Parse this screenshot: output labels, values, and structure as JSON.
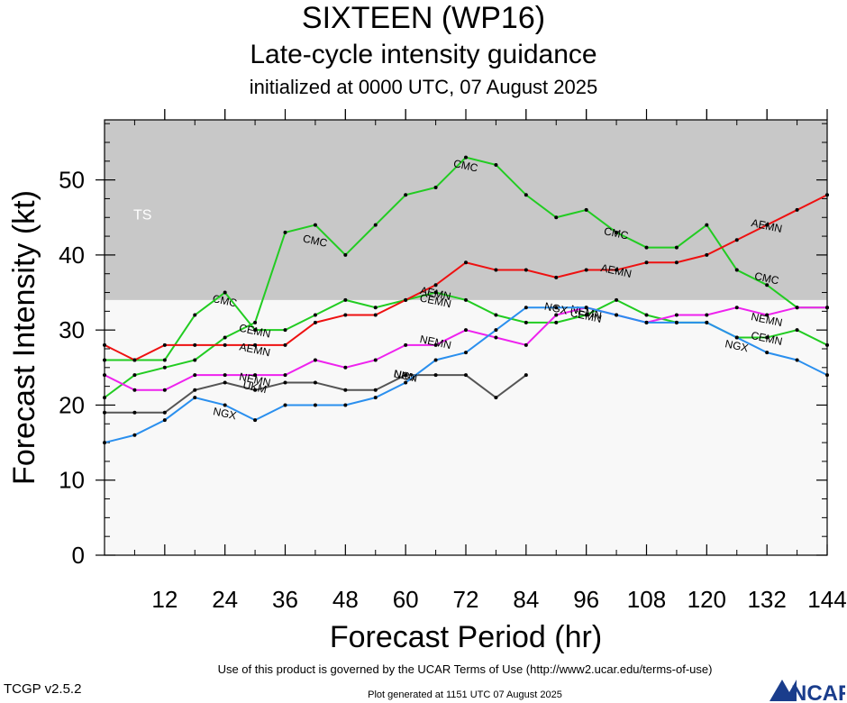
{
  "header": {
    "title": "SIXTEEN (WP16)",
    "subtitle": "Late-cycle intensity guidance",
    "subtitle2": "initialized at 0000 UTC, 07 August 2025"
  },
  "footer": {
    "terms": "Use of this product is governed by the UCAR Terms of Use (http://www2.ucar.edu/terms-of-use)",
    "version": "TCGP v2.5.2",
    "generated": "Plot generated at 1151 UTC   07 August 2025",
    "logo_text": "NCAR"
  },
  "chart_data": {
    "type": "line",
    "xlabel": "Forecast Period (hr)",
    "ylabel": "Forecast Intensity (kt)",
    "xlim": [
      0,
      144
    ],
    "ylim": [
      0,
      58
    ],
    "xticks": [
      12,
      24,
      36,
      48,
      60,
      72,
      84,
      96,
      108,
      120,
      132,
      144
    ],
    "yticks": [
      0,
      10,
      20,
      30,
      40,
      50
    ],
    "shaded_region": {
      "label": "TS",
      "y_from": 34,
      "y_to": 58,
      "color": "#c8c8c8"
    },
    "below_color": "#f8f8f8",
    "series": [
      {
        "name": "CMC",
        "color": "#22cc22",
        "x": [
          0,
          6,
          12,
          18,
          24,
          30,
          36,
          42,
          48,
          54,
          60,
          66,
          72,
          78,
          84,
          90,
          96,
          102,
          108,
          114,
          120,
          126,
          132,
          138,
          144
        ],
        "y": [
          21,
          24,
          25,
          26,
          29,
          31,
          43,
          44,
          40,
          44,
          48,
          49,
          53,
          52,
          48,
          45,
          46,
          43,
          41,
          41,
          44,
          38,
          36,
          33,
          33
        ],
        "labels": [
          [
            24,
            34
          ],
          [
            42,
            42
          ],
          [
            72,
            52
          ],
          [
            102,
            43
          ],
          [
            132,
            37
          ]
        ]
      },
      {
        "name": "CEMN",
        "color": "#22cc22",
        "x": [
          0,
          6,
          12,
          18,
          24,
          30,
          36,
          42,
          48,
          54,
          60,
          66,
          72,
          78,
          84,
          90,
          96,
          102,
          108,
          114,
          120,
          126,
          132,
          138,
          144
        ],
        "y": [
          26,
          26,
          26,
          32,
          35,
          30,
          30,
          32,
          34,
          33,
          34,
          35,
          34,
          32,
          31,
          31,
          32,
          34,
          32,
          31,
          31,
          29,
          29,
          30,
          28
        ],
        "labels": [
          [
            30,
            30
          ],
          [
            66,
            34
          ],
          [
            96,
            32
          ],
          [
            132,
            29
          ]
        ]
      },
      {
        "name": "AEMN",
        "color": "#ee1111",
        "x": [
          0,
          6,
          12,
          18,
          24,
          30,
          36,
          42,
          48,
          54,
          60,
          66,
          72,
          78,
          84,
          90,
          96,
          102,
          108,
          114,
          120,
          126,
          132,
          138,
          144
        ],
        "y": [
          28,
          26,
          28,
          28,
          28,
          28,
          28,
          31,
          32,
          32,
          34,
          36,
          39,
          38,
          38,
          37,
          38,
          38,
          39,
          39,
          40,
          42,
          44,
          46,
          48
        ],
        "labels": [
          [
            30,
            27.5
          ],
          [
            66,
            35
          ],
          [
            102,
            38
          ],
          [
            132,
            44
          ]
        ]
      },
      {
        "name": "NEMN",
        "color": "#ee22ee",
        "x": [
          0,
          6,
          12,
          18,
          24,
          30,
          36,
          42,
          48,
          54,
          60,
          66,
          72,
          78,
          84,
          90,
          96,
          102,
          108,
          114,
          120,
          126,
          132,
          138,
          144
        ],
        "y": [
          24,
          22,
          22,
          24,
          24,
          24,
          24,
          26,
          25,
          26,
          28,
          28,
          30,
          29,
          28,
          32,
          33,
          32,
          31,
          32,
          32,
          33,
          32,
          33,
          33
        ],
        "labels": [
          [
            30,
            23.5
          ],
          [
            66,
            28.5
          ],
          [
            96,
            32.5
          ],
          [
            132,
            31.5
          ]
        ]
      },
      {
        "name": "UKM",
        "color": "#555555",
        "x": [
          0,
          6,
          12,
          18,
          24,
          30,
          36,
          42,
          48,
          54,
          60,
          66,
          72,
          78,
          84
        ],
        "y": [
          19,
          19,
          19,
          22,
          23,
          22,
          23,
          23,
          22,
          22,
          24,
          24,
          24,
          21,
          24
        ],
        "labels": [
          [
            30,
            22.5
          ],
          [
            60,
            24
          ]
        ]
      },
      {
        "name": "NGX",
        "color": "#2a8fee",
        "x": [
          0,
          6,
          12,
          18,
          24,
          30,
          36,
          42,
          48,
          54,
          60,
          66,
          72,
          78,
          84,
          90,
          96,
          102,
          108,
          114,
          120,
          126,
          132,
          138,
          144
        ],
        "y": [
          15,
          16,
          18,
          21,
          20,
          18,
          20,
          20,
          20,
          21,
          23,
          26,
          27,
          30,
          33,
          33,
          33,
          32,
          31,
          31,
          31,
          29,
          27,
          26,
          24
        ],
        "labels": [
          [
            24,
            19
          ],
          [
            60,
            24
          ],
          [
            90,
            33
          ],
          [
            126,
            28
          ]
        ]
      }
    ]
  }
}
